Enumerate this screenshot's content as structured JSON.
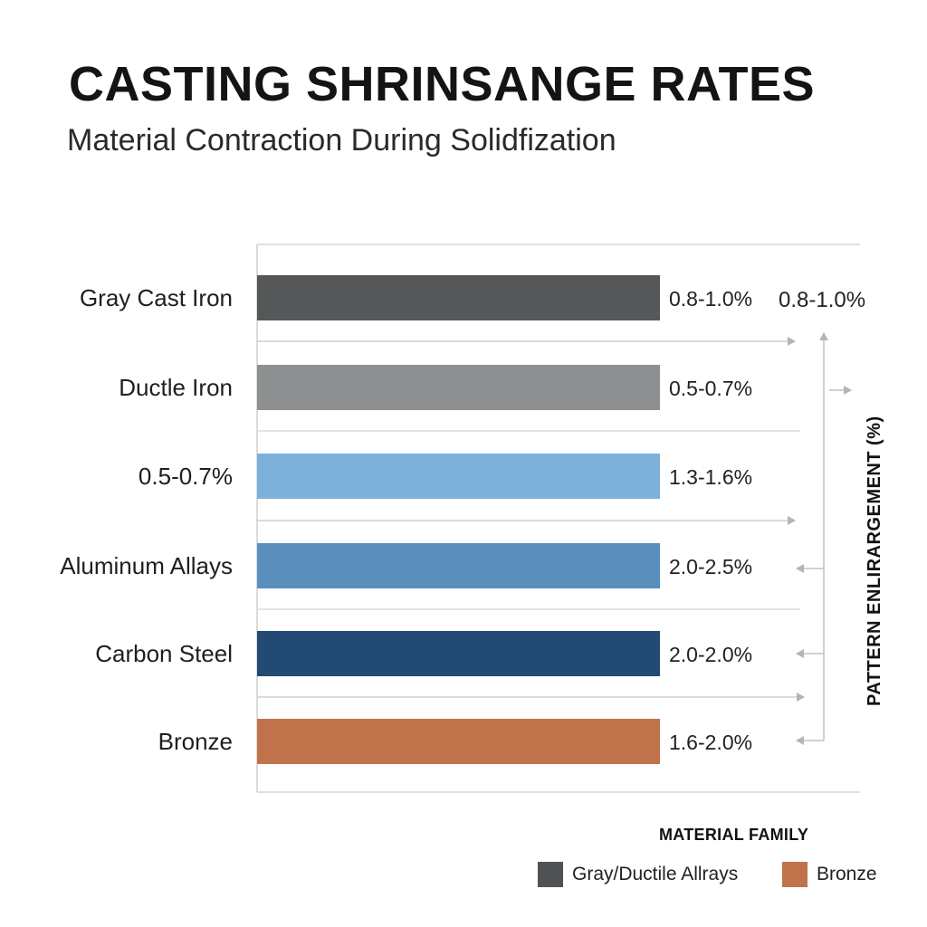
{
  "title": "CASTING SHRINSANGE RATES",
  "subtitle": "Material Contraction During Solidfization",
  "chart_data": {
    "type": "bar",
    "orientation": "horizontal",
    "categories": [
      "Gray Cast Iron",
      "Ductle Iron",
      "0.5-0.7%",
      "Aluminum Allays",
      "Carbon Steel",
      "Bronze"
    ],
    "value_labels": [
      "0.8-1.0%",
      "0.5-0.7%",
      "1.3-1.6%",
      "2.0-2.5%",
      "2.0-2.0%",
      "1.6-2.0%"
    ],
    "extra_label": "0.8-1.0%",
    "colors": [
      "#555759",
      "#8e8f90",
      "#7eb1da",
      "#5a8fbd",
      "#234a72",
      "#c0734b"
    ],
    "axis_title": "PATTERN ENLIRARGEMENT (%)",
    "grid": true
  },
  "legend": {
    "title": "MATERIAL FAMILY",
    "items": [
      {
        "label": "Gray/Ductile Allrays",
        "color": "#505254"
      },
      {
        "label": "Bronze",
        "color": "#c0734b"
      }
    ]
  }
}
